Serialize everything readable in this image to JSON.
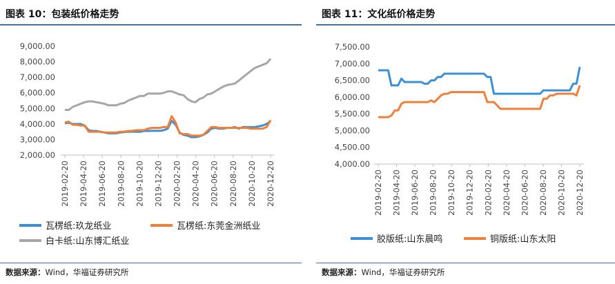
{
  "left": {
    "title": "图表 10：包装纸价格走势",
    "source_prefix": "数据来源：",
    "source_body": "Wind，华福证券研究所",
    "chart_data": {
      "type": "line",
      "y_ticks": [
        "9,000.00",
        "8,000.00",
        "7,000.00",
        "6,000.00",
        "5,000.00",
        "4,000.00",
        "3,000.00",
        "2,000.00"
      ],
      "ylim": [
        2000,
        9000
      ],
      "x_ticks": [
        "2019-02-20",
        "2019-04-20",
        "2019-06-20",
        "2019-08-20",
        "2019-10-20",
        "2019-12-20",
        "2020-02-20",
        "2020-04-20",
        "2020-06-20",
        "2020-08-20",
        "2020-10-20",
        "2020-12-20"
      ],
      "series": [
        {
          "name": "瓦楞纸:玖龙纸业",
          "color": "#3b8fd6",
          "values": [
            4050,
            4080,
            4000,
            4000,
            4000,
            3900,
            3600,
            3550,
            3550,
            3500,
            3450,
            3400,
            3400,
            3400,
            3450,
            3480,
            3500,
            3500,
            3500,
            3500,
            3550,
            3550,
            3560,
            3560,
            3560,
            3600,
            3700,
            4200,
            3950,
            3450,
            3300,
            3250,
            3150,
            3150,
            3200,
            3300,
            3450,
            3700,
            3750,
            3700,
            3700,
            3750,
            3750,
            3800,
            3700,
            3800,
            3800,
            3800,
            3800,
            3850,
            3900,
            4000,
            4200
          ]
        },
        {
          "name": "瓦楞纸:东莞金洲纸业",
          "color": "#f07f3a",
          "values": [
            4100,
            4150,
            3950,
            3950,
            3900,
            3900,
            3500,
            3500,
            3500,
            3500,
            3450,
            3450,
            3450,
            3450,
            3500,
            3500,
            3550,
            3550,
            3600,
            3600,
            3600,
            3700,
            3750,
            3750,
            3750,
            3800,
            3800,
            4500,
            4100,
            3400,
            3350,
            3350,
            3250,
            3250,
            3250,
            3300,
            3550,
            3800,
            3800,
            3750,
            3750,
            3750,
            3750,
            3750,
            3750,
            3750,
            3750,
            3700,
            3700,
            3700,
            3700,
            3800,
            4250
          ]
        },
        {
          "name": "白卡纸:山东博汇纸业",
          "color": "#a6a6a6",
          "values": [
            4900,
            4900,
            5100,
            5200,
            5300,
            5400,
            5450,
            5450,
            5400,
            5350,
            5300,
            5200,
            5200,
            5200,
            5300,
            5350,
            5500,
            5600,
            5700,
            5800,
            5800,
            5950,
            5950,
            5950,
            5950,
            6000,
            6100,
            6100,
            6000,
            5900,
            5850,
            5600,
            5450,
            5400,
            5600,
            5700,
            5900,
            5950,
            6100,
            6250,
            6400,
            6500,
            6550,
            6600,
            6800,
            7000,
            7200,
            7400,
            7600,
            7700,
            7800,
            7900,
            8200
          ]
        }
      ]
    }
  },
  "right": {
    "title": "图表 11：文化纸价格走势",
    "source_prefix": "数据来源：",
    "source_body": "Wind，华福证券研究所",
    "chart_data": {
      "type": "line",
      "y_ticks": [
        "7,500.00",
        "7,000.00",
        "6,500.00",
        "6,000.00",
        "5,500.00",
        "5,000.00",
        "4,500.00",
        "4,000.00"
      ],
      "ylim": [
        4000,
        7500
      ],
      "x_ticks": [
        "2019-02-20",
        "2019-04-20",
        "2019-06-20",
        "2019-08-20",
        "2019-10-20",
        "2019-12-20",
        "2020-02-20",
        "2020-04-20",
        "2020-06-20",
        "2020-08-20",
        "2020-10-20",
        "2020-12-20"
      ],
      "series": [
        {
          "name": "胶版纸:山东晨鸣",
          "color": "#3b8fd6",
          "values": [
            6800,
            6800,
            6800,
            6800,
            6350,
            6350,
            6350,
            6550,
            6450,
            6450,
            6450,
            6450,
            6450,
            6450,
            6400,
            6400,
            6500,
            6500,
            6600,
            6600,
            6700,
            6700,
            6700,
            6700,
            6700,
            6700,
            6700,
            6700,
            6700,
            6700,
            6700,
            6700,
            6700,
            6600,
            6600,
            6100,
            6100,
            6100,
            6100,
            6100,
            6100,
            6100,
            6100,
            6100,
            6100,
            6100,
            6100,
            6100,
            6100,
            6100,
            6200,
            6200,
            6200,
            6200,
            6200,
            6200,
            6200,
            6200,
            6200,
            6400,
            6400,
            6900
          ]
        },
        {
          "name": "铜版纸:山东太阳",
          "color": "#f07f3a",
          "values": [
            5400,
            5400,
            5400,
            5400,
            5450,
            5600,
            5600,
            5800,
            5850,
            5850,
            5850,
            5850,
            5850,
            5850,
            5850,
            5850,
            5900,
            5850,
            5950,
            6050,
            6100,
            6100,
            6150,
            6150,
            6150,
            6150,
            6150,
            6150,
            6150,
            6150,
            6150,
            6150,
            6150,
            5850,
            5850,
            5850,
            5750,
            5650,
            5650,
            5650,
            5650,
            5650,
            5650,
            5650,
            5650,
            5650,
            5650,
            5650,
            5650,
            5650,
            5950,
            5950,
            6050,
            6050,
            6100,
            6100,
            6100,
            6100,
            6100,
            6100,
            6050,
            6350
          ]
        }
      ]
    }
  }
}
